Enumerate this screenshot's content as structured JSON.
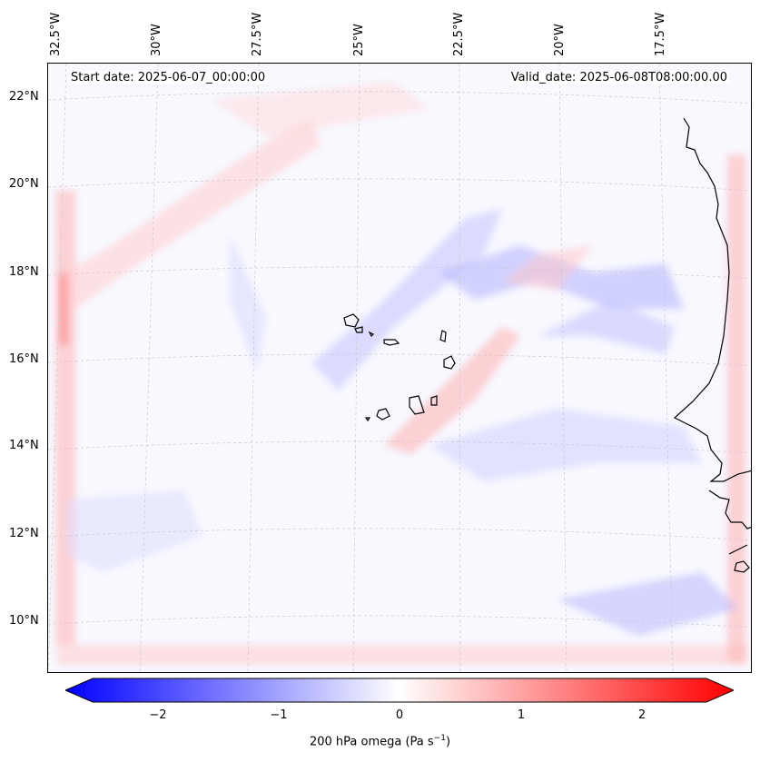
{
  "map": {
    "start_date_label": "Start date: 2025-06-07_00:00:00",
    "valid_date_label": "Valid_date: 2025-06-08T08:00:00.00",
    "lon_labels": [
      "32.5°W",
      "30°W",
      "27.5°W",
      "25°W",
      "22.5°W",
      "20°W",
      "17.5°W"
    ],
    "lat_labels": [
      "22°N",
      "20°N",
      "18°N",
      "16°N",
      "14°N",
      "12°N",
      "10°N"
    ],
    "colors": {
      "negative": "#0000ff",
      "neutral": "#ffffff",
      "positive": "#ff0000",
      "coastline": "#000000"
    }
  },
  "colorbar": {
    "ticks": [
      "−2",
      "−1",
      "0",
      "1",
      "2"
    ],
    "label": "200 hPa omega (Pa s",
    "label_sup": "−1",
    "label_end": ")",
    "range": [
      -2.5,
      2.5
    ]
  }
}
